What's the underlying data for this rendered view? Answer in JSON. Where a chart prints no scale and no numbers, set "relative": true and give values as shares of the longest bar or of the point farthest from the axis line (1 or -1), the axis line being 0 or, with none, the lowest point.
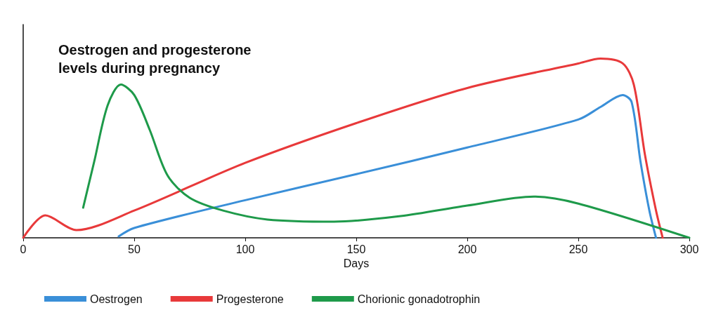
{
  "chart_data": {
    "type": "line",
    "title": "Oestrogen and progesterone\nlevels during pregnancy",
    "xlabel": "Days",
    "relative": true,
    "xlim": [
      0,
      300
    ],
    "xticks": [
      0,
      50,
      100,
      150,
      200,
      250,
      300
    ],
    "grid": false,
    "legend": "bottom left",
    "marker": "none",
    "line_style": "solid",
    "series": [
      {
        "name": "Oestrogen",
        "color": "#3a8fd8",
        "x": [
          43,
          50,
          100,
          150,
          200,
          250,
          260,
          270,
          274,
          278,
          282,
          285
        ],
        "values": [
          0.008,
          0.055,
          0.21,
          0.355,
          0.504,
          0.66,
          0.73,
          0.797,
          0.758,
          0.426,
          0.152,
          0
        ]
      },
      {
        "name": "Progesterone",
        "color": "#e8393a",
        "x": [
          0,
          10,
          24,
          50,
          100,
          150,
          200,
          250,
          260,
          270,
          275,
          280,
          285,
          288
        ],
        "values": [
          0,
          0.125,
          0.043,
          0.152,
          0.418,
          0.64,
          0.836,
          0.973,
          1,
          0.973,
          0.855,
          0.465,
          0.152,
          0
        ]
      },
      {
        "name": "Chorionic gonadotrophin",
        "color": "#1e9a4a",
        "x": [
          27,
          32,
          38,
          44,
          50,
          57,
          65,
          75,
          90,
          110,
          140,
          170,
          200,
          230,
          250,
          300
        ],
        "values": [
          0.168,
          0.426,
          0.738,
          0.855,
          0.797,
          0.602,
          0.348,
          0.223,
          0.152,
          0.102,
          0.09,
          0.121,
          0.18,
          0.23,
          0.191,
          0
        ]
      }
    ]
  }
}
